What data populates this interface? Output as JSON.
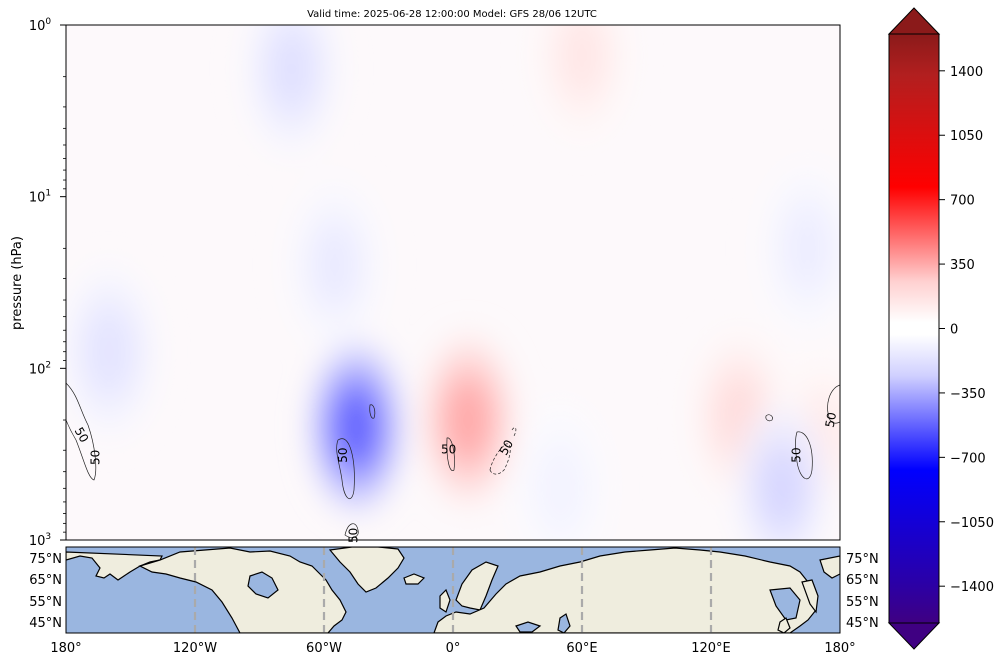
{
  "title": "Valid time: 2025-06-28 12:00:00 Model: GFS 28/06 12UTC",
  "chart_data": {
    "type": "heatmap",
    "title": "Valid time: 2025-06-28 12:00:00 Model: GFS 28/06 12UTC",
    "ylabel": "pressure (hPa)",
    "yscale": "log",
    "yaxis_inverted": true,
    "ylim": [
      1000,
      1
    ],
    "yticks": [
      {
        "value": 1,
        "label": "10^0"
      },
      {
        "value": 10,
        "label": "10^1"
      },
      {
        "value": 100,
        "label": "10^2"
      },
      {
        "value": 1000,
        "label": "10^3"
      }
    ],
    "xlim": [
      -180,
      180
    ],
    "colormap": "seismic-like (indigo → blue → white → red → dark red), extended both ends",
    "colorbar": {
      "range": [
        -1600,
        1600
      ],
      "ticks": [
        1400,
        1050,
        700,
        350,
        0,
        -350,
        -700,
        -1050,
        -1400
      ],
      "tick_labels": [
        "1400",
        "1050",
        "700",
        "350",
        "0",
        "−350",
        "−700",
        "−1050",
        "−1400"
      ]
    },
    "anomaly_regions": [
      {
        "sign": "negative",
        "lon": -55,
        "pressure": 25,
        "peak": -70
      },
      {
        "sign": "positive",
        "lon": 60,
        "pressure": 1.5,
        "peak": 80
      },
      {
        "sign": "negative",
        "lon": -75,
        "pressure": 1.8,
        "peak": -100
      },
      {
        "sign": "negative",
        "lon": -160,
        "pressure": 80,
        "peak": -90
      },
      {
        "sign": "negative",
        "lon": -45,
        "pressure": 220,
        "peak": -500
      },
      {
        "sign": "positive",
        "lon": 7,
        "pressure": 200,
        "peak": 280
      },
      {
        "sign": "positive",
        "lon": 133,
        "pressure": 190,
        "peak": 110
      },
      {
        "sign": "positive",
        "lon": 172,
        "pressure": 250,
        "peak": 70
      },
      {
        "sign": "negative",
        "lon": 165,
        "pressure": 20,
        "peak": -60
      },
      {
        "sign": "negative",
        "lon": 153,
        "pressure": 500,
        "peak": -130
      },
      {
        "sign": "negative",
        "lon": 50,
        "pressure": 500,
        "peak": -40
      }
    ],
    "contour_labels": [
      {
        "text": "50",
        "lon": -173,
        "pressure": 245,
        "rotation": 60
      },
      {
        "text": "50",
        "lon": -166,
        "pressure": 330,
        "rotation": -90
      },
      {
        "text": "50",
        "lon": -51,
        "pressure": 320,
        "rotation": -90
      },
      {
        "text": "50",
        "lon": -46,
        "pressure": 940,
        "rotation": -90
      },
      {
        "text": "50",
        "lon": -2,
        "pressure": 300,
        "rotation": 0
      },
      {
        "text": "50",
        "lon": 25,
        "pressure": 290,
        "rotation": -60
      },
      {
        "text": "50",
        "lon": 160,
        "pressure": 320,
        "rotation": -90
      },
      {
        "text": "50",
        "lon": 176,
        "pressure": 200,
        "rotation": -80
      }
    ],
    "map_panel": {
      "latitude_labels": [
        "75°N",
        "65°N",
        "55°N",
        "45°N"
      ],
      "longitude_ticks": [
        -180,
        -120,
        -60,
        0,
        60,
        120,
        180
      ],
      "longitude_labels": [
        "180°",
        "120°W",
        "60°W",
        "0°",
        "60°E",
        "120°E",
        "180°"
      ],
      "ocean_color": "#9ab6e0",
      "land_color": "#efedde",
      "gridline_color": "#aaaaaa"
    }
  }
}
